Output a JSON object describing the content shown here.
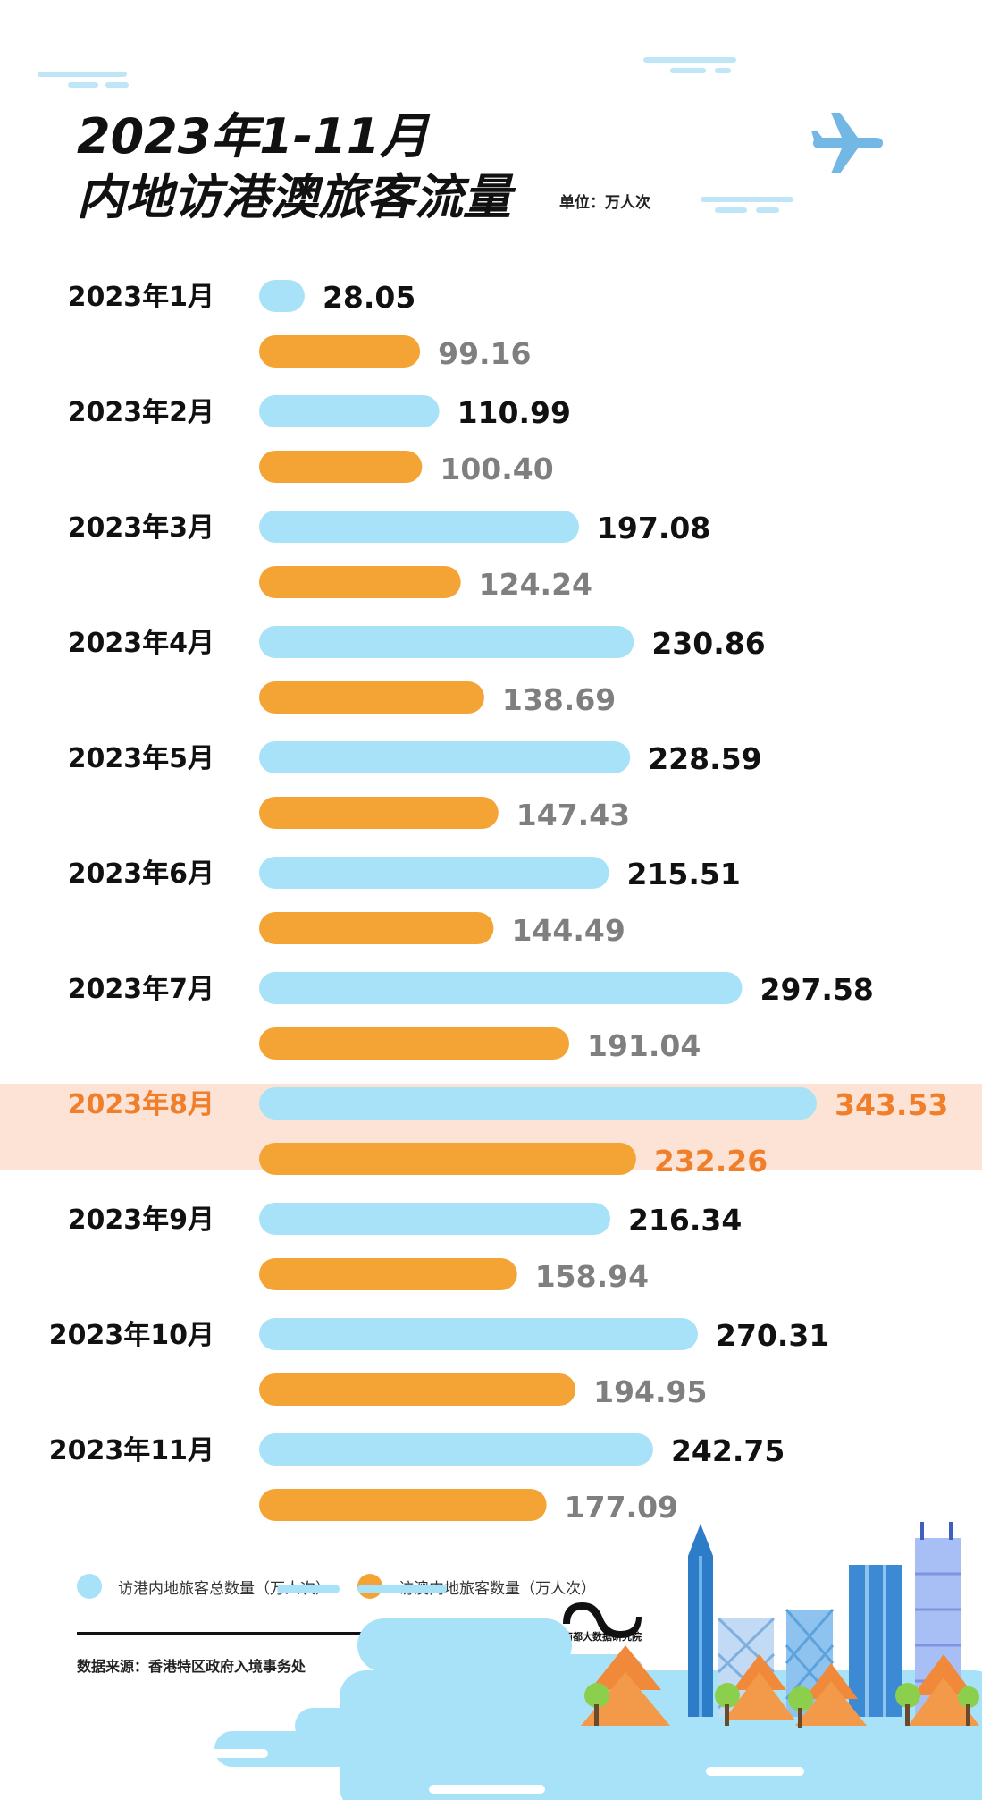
{
  "header": {
    "title_line1": "2023年1-11月",
    "title_line2": "内地访港澳旅客流量",
    "unit": "单位：万人次"
  },
  "colors": {
    "hk": "#a8e2f8",
    "macau": "#f4a435",
    "highlight_band": "#fde3d6",
    "highlight_text": "#f07f2c",
    "hk_value_text": "#111111",
    "macau_value_text": "#7f7f7f"
  },
  "chart_data": {
    "type": "bar",
    "orientation": "horizontal",
    "categories": [
      "2023年1月",
      "2023年2月",
      "2023年3月",
      "2023年4月",
      "2023年5月",
      "2023年6月",
      "2023年7月",
      "2023年8月",
      "2023年9月",
      "2023年10月",
      "2023年11月"
    ],
    "series": [
      {
        "name": "访港内地旅客总数量（万人次）",
        "values": [
          28.05,
          110.99,
          197.08,
          230.86,
          228.59,
          215.51,
          297.58,
          343.53,
          216.34,
          270.31,
          242.75
        ]
      },
      {
        "name": "访澳内地旅客数量（万人次）",
        "values": [
          99.16,
          100.4,
          124.24,
          138.69,
          147.43,
          144.49,
          191.04,
          232.26,
          158.94,
          194.95,
          177.09
        ]
      }
    ],
    "value_labels_hk": [
      "28.05",
      "110.99",
      "197.08",
      "230.86",
      "228.59",
      "215.51",
      "297.58",
      "343.53",
      "216.34",
      "270.31",
      "242.75"
    ],
    "value_labels_macau": [
      "99.16",
      "100.40",
      "124.24",
      "138.69",
      "147.43",
      "144.49",
      "191.04",
      "232.26",
      "158.94",
      "194.95",
      "177.09"
    ],
    "highlight_category": "2023年8月",
    "legend_position": "bottom-left",
    "grid": false,
    "title": "",
    "xlabel": "",
    "ylabel": ""
  },
  "legend": {
    "hk_label": "访港内地旅客总数量（万人次）",
    "macau_label": "访澳内地旅客数量（万人次）"
  },
  "footer": {
    "source": "数据来源：香港特区政府入境事务处",
    "logo_text": "南都大数据研究院"
  },
  "icons": {
    "plane": "airplane-icon",
    "logo": "brand-logo-icon"
  }
}
